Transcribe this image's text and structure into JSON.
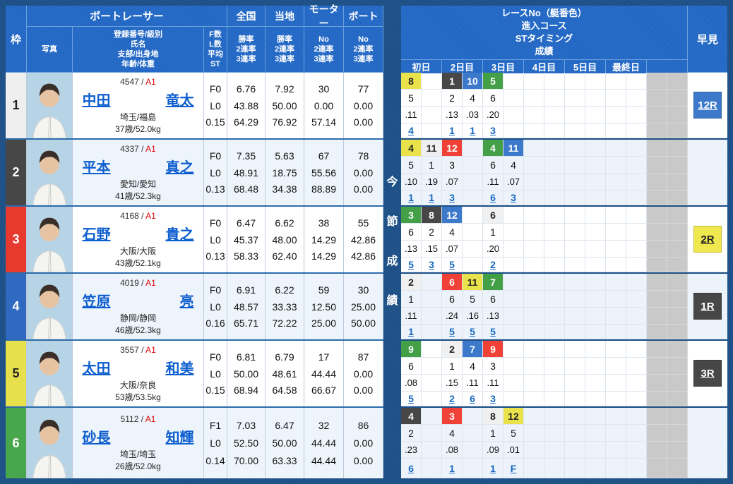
{
  "header": {
    "frame": "枠",
    "photo": "写真",
    "racer_group": "ボートレーサー",
    "racer_detail": [
      "登録番号/級別",
      "氏名",
      "支部/出身地",
      "年齢/体重"
    ],
    "fl_detail": [
      "F数",
      "L数",
      "平均ST"
    ],
    "stat_groups": [
      {
        "label": "全国",
        "detail": [
          "勝率",
          "2連率",
          "3連率"
        ]
      },
      {
        "label": "当地",
        "detail": [
          "勝率",
          "2連率",
          "3連率"
        ]
      },
      {
        "label": "モーター",
        "detail": [
          "No",
          "2連率",
          "3連率"
        ]
      },
      {
        "label": "ボート",
        "detail": [
          "No",
          "2連率",
          "3連率"
        ]
      }
    ],
    "series_title": [
      "レースNo（艇番色）",
      "進入コース",
      "STタイミング",
      "成績"
    ],
    "days": [
      "初日",
      "2日目",
      "3日目",
      "4日目",
      "5日目",
      "最終日"
    ],
    "hayami": "早見",
    "series_vertical": [
      "今",
      "節",
      "成",
      "績"
    ]
  },
  "colors": {
    "frame": {
      "1": {
        "bg": "#efefef",
        "fg": "#222222"
      },
      "2": {
        "bg": "#474747",
        "fg": "#ffffff"
      },
      "3": {
        "bg": "#e8392f",
        "fg": "#ffffff"
      },
      "4": {
        "bg": "#3069c0",
        "fg": "#ffffff"
      },
      "5": {
        "bg": "#e7e04d",
        "fg": "#222222"
      },
      "6": {
        "bg": "#48a64c",
        "fg": "#ffffff"
      }
    },
    "boat": {
      "white": {
        "bg": "#f0f0f0",
        "fg": "#222222"
      },
      "black": {
        "bg": "#474747",
        "fg": "#ffffff"
      },
      "red": {
        "bg": "#ef4136",
        "fg": "#ffffff"
      },
      "blue": {
        "bg": "#3d79cb",
        "fg": "#ffffff"
      },
      "yellow": {
        "bg": "#e9e24a",
        "fg": "#222222"
      },
      "green": {
        "bg": "#43a047",
        "fg": "#ffffff"
      }
    },
    "hayami": {
      "blue": {
        "bg": "#3d79cb",
        "fg": "#ffffff"
      },
      "yellow": {
        "bg": "#efe84f",
        "fg": "#222222"
      },
      "black": {
        "bg": "#474747",
        "fg": "#ffffff"
      }
    }
  },
  "racers": [
    {
      "frame": "1",
      "reg_no": "4547",
      "grade": "A1",
      "name_last": "中田",
      "name_first": "竜太",
      "branch": "埼玉/福島",
      "age_weight": "37歳/52.0kg",
      "fl_st": [
        "F0",
        "L0",
        "0.15"
      ],
      "national": [
        "6.76",
        "43.88",
        "64.29"
      ],
      "local": [
        "7.92",
        "50.00",
        "76.92"
      ],
      "motor": [
        "30",
        "0.00",
        "57.14"
      ],
      "boat": [
        "77",
        "0.00",
        "0.00"
      ],
      "days": [
        [
          {
            "race": "8",
            "boat_color": "yellow",
            "course": "5",
            "st": ".11",
            "result": "4"
          },
          null
        ],
        [
          {
            "race": "1",
            "boat_color": "black",
            "course": "2",
            "st": ".13",
            "result": "1"
          },
          {
            "race": "10",
            "boat_color": "blue",
            "course": "4",
            "st": ".03",
            "result": "1"
          }
        ],
        [
          {
            "race": "5",
            "boat_color": "green",
            "course": "6",
            "st": ".20",
            "result": "3"
          },
          null
        ],
        [
          null,
          null
        ],
        [
          null,
          null
        ],
        [
          null,
          null
        ]
      ],
      "hayami": {
        "label": "12R",
        "color": "blue"
      }
    },
    {
      "frame": "2",
      "reg_no": "4337",
      "grade": "A1",
      "name_last": "平本",
      "name_first": "真之",
      "branch": "愛知/愛知",
      "age_weight": "41歳/52.3kg",
      "fl_st": [
        "F0",
        "L0",
        "0.13"
      ],
      "national": [
        "7.35",
        "48.91",
        "68.48"
      ],
      "local": [
        "5.63",
        "18.75",
        "34.38"
      ],
      "motor": [
        "67",
        "55.56",
        "88.89"
      ],
      "boat": [
        "78",
        "0.00",
        "0.00"
      ],
      "days": [
        [
          {
            "race": "4",
            "boat_color": "yellow",
            "course": "5",
            "st": ".10",
            "result": "1"
          },
          {
            "race": "11",
            "boat_color": "white",
            "course": "1",
            "st": ".19",
            "result": "1"
          }
        ],
        [
          {
            "race": "12",
            "boat_color": "red",
            "course": "3",
            "st": ".07",
            "result": "3"
          },
          null
        ],
        [
          {
            "race": "4",
            "boat_color": "green",
            "course": "6",
            "st": ".11",
            "result": "6"
          },
          {
            "race": "11",
            "boat_color": "blue",
            "course": "4",
            "st": ".07",
            "result": "3"
          }
        ],
        [
          null,
          null
        ],
        [
          null,
          null
        ],
        [
          null,
          null
        ]
      ],
      "hayami": null
    },
    {
      "frame": "3",
      "reg_no": "4168",
      "grade": "A1",
      "name_last": "石野",
      "name_first": "貴之",
      "branch": "大阪/大阪",
      "age_weight": "43歳/52.1kg",
      "fl_st": [
        "F0",
        "L0",
        "0.13"
      ],
      "national": [
        "6.47",
        "45.37",
        "58.33"
      ],
      "local": [
        "6.62",
        "48.00",
        "62.40"
      ],
      "motor": [
        "38",
        "14.29",
        "14.29"
      ],
      "boat": [
        "55",
        "42.86",
        "42.86"
      ],
      "days": [
        [
          {
            "race": "3",
            "boat_color": "green",
            "course": "6",
            "st": ".13",
            "result": "5"
          },
          {
            "race": "8",
            "boat_color": "black",
            "course": "2",
            "st": ".15",
            "result": "3"
          }
        ],
        [
          {
            "race": "12",
            "boat_color": "blue",
            "course": "4",
            "st": ".07",
            "result": "5"
          },
          null
        ],
        [
          {
            "race": "6",
            "boat_color": "white",
            "course": "1",
            "st": ".20",
            "result": "2"
          },
          null
        ],
        [
          null,
          null
        ],
        [
          null,
          null
        ],
        [
          null,
          null
        ]
      ],
      "hayami": {
        "label": "2R",
        "color": "yellow"
      }
    },
    {
      "frame": "4",
      "reg_no": "4019",
      "grade": "A1",
      "name_last": "笠原",
      "name_first": "亮",
      "branch": "静岡/静岡",
      "age_weight": "46歳/52.3kg",
      "fl_st": [
        "F0",
        "L0",
        "0.16"
      ],
      "national": [
        "6.91",
        "48.57",
        "65.71"
      ],
      "local": [
        "6.22",
        "33.33",
        "72.22"
      ],
      "motor": [
        "59",
        "12.50",
        "25.00"
      ],
      "boat": [
        "30",
        "25.00",
        "50.00"
      ],
      "days": [
        [
          {
            "race": "2",
            "boat_color": "white",
            "course": "1",
            "st": ".11",
            "result": "1"
          },
          null
        ],
        [
          {
            "race": "6",
            "boat_color": "red",
            "course": "6",
            "st": ".24",
            "result": "5"
          },
          {
            "race": "11",
            "boat_color": "yellow",
            "course": "5",
            "st": ".16",
            "result": "5"
          }
        ],
        [
          {
            "race": "7",
            "boat_color": "green",
            "course": "6",
            "st": ".13",
            "result": "5"
          },
          null
        ],
        [
          null,
          null
        ],
        [
          null,
          null
        ],
        [
          null,
          null
        ]
      ],
      "hayami": {
        "label": "1R",
        "color": "black"
      }
    },
    {
      "frame": "5",
      "reg_no": "3557",
      "grade": "A1",
      "name_last": "太田",
      "name_first": "和美",
      "branch": "大阪/奈良",
      "age_weight": "53歳/53.5kg",
      "fl_st": [
        "F0",
        "L0",
        "0.15"
      ],
      "national": [
        "6.81",
        "50.00",
        "68.94"
      ],
      "local": [
        "6.79",
        "48.61",
        "64.58"
      ],
      "motor": [
        "17",
        "44.44",
        "66.67"
      ],
      "boat": [
        "87",
        "0.00",
        "0.00"
      ],
      "days": [
        [
          {
            "race": "9",
            "boat_color": "green",
            "course": "6",
            "st": ".08",
            "result": "5"
          },
          null
        ],
        [
          {
            "race": "2",
            "boat_color": "white",
            "course": "1",
            "st": ".15",
            "result": "2"
          },
          {
            "race": "7",
            "boat_color": "blue",
            "course": "4",
            "st": ".11",
            "result": "6"
          }
        ],
        [
          {
            "race": "9",
            "boat_color": "red",
            "course": "3",
            "st": ".11",
            "result": "3"
          },
          null
        ],
        [
          null,
          null
        ],
        [
          null,
          null
        ],
        [
          null,
          null
        ]
      ],
      "hayami": {
        "label": "3R",
        "color": "black"
      }
    },
    {
      "frame": "6",
      "reg_no": "5112",
      "grade": "A1",
      "name_last": "砂長",
      "name_first": "知輝",
      "branch": "埼玉/埼玉",
      "age_weight": "26歳/52.0kg",
      "fl_st": [
        "F1",
        "L0",
        "0.14"
      ],
      "national": [
        "7.03",
        "52.50",
        "70.00"
      ],
      "local": [
        "6.47",
        "50.00",
        "63.33"
      ],
      "motor": [
        "32",
        "44.44",
        "44.44"
      ],
      "boat": [
        "86",
        "0.00",
        "0.00"
      ],
      "days": [
        [
          {
            "race": "4",
            "boat_color": "black",
            "course": "2",
            "st": ".23",
            "result": "6"
          },
          null
        ],
        [
          {
            "race": "3",
            "boat_color": "red",
            "course": "4",
            "st": ".08",
            "result": "1"
          },
          null
        ],
        [
          {
            "race": "8",
            "boat_color": "white",
            "course": "1",
            "st": ".09",
            "result": "1"
          },
          {
            "race": "12",
            "boat_color": "yellow",
            "course": "5",
            "st": ".01",
            "result": "F"
          }
        ],
        [
          null,
          null
        ],
        [
          null,
          null
        ],
        [
          null,
          null
        ]
      ],
      "hayami": null
    }
  ]
}
